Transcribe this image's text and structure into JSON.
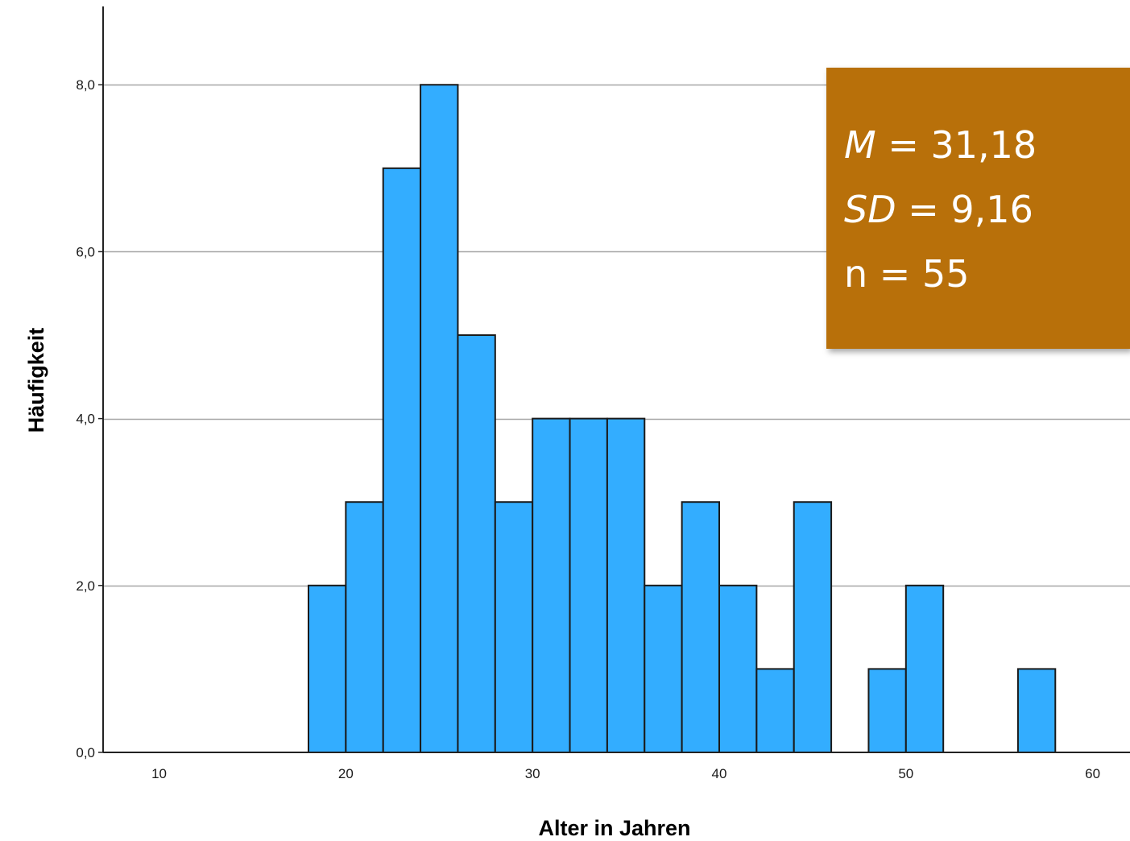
{
  "chart_data": {
    "type": "bar",
    "subtype": "histogram",
    "xlabel": "Alter in Jahren",
    "ylabel": "Häufigkeit",
    "xlim": [
      7,
      62
    ],
    "ylim": [
      0,
      8.9
    ],
    "x_ticks": [
      10,
      20,
      30,
      40,
      50,
      60
    ],
    "x_tick_labels": [
      "10",
      "20",
      "30",
      "40",
      "50",
      "60"
    ],
    "y_ticks": [
      0,
      2,
      4,
      6,
      8
    ],
    "y_tick_labels": [
      "0,0",
      "2,0",
      "4,0",
      "6,0",
      "8,0"
    ],
    "bin_width": 2,
    "bins": [
      {
        "x0": 18,
        "x1": 20,
        "count": 2
      },
      {
        "x0": 20,
        "x1": 22,
        "count": 3
      },
      {
        "x0": 22,
        "x1": 24,
        "count": 7
      },
      {
        "x0": 24,
        "x1": 26,
        "count": 8
      },
      {
        "x0": 26,
        "x1": 28,
        "count": 5
      },
      {
        "x0": 28,
        "x1": 30,
        "count": 3
      },
      {
        "x0": 30,
        "x1": 32,
        "count": 4
      },
      {
        "x0": 32,
        "x1": 34,
        "count": 4
      },
      {
        "x0": 34,
        "x1": 36,
        "count": 4
      },
      {
        "x0": 36,
        "x1": 38,
        "count": 2
      },
      {
        "x0": 38,
        "x1": 40,
        "count": 3
      },
      {
        "x0": 40,
        "x1": 42,
        "count": 2
      },
      {
        "x0": 42,
        "x1": 44,
        "count": 1
      },
      {
        "x0": 44,
        "x1": 46,
        "count": 3
      },
      {
        "x0": 48,
        "x1": 50,
        "count": 1
      },
      {
        "x0": 50,
        "x1": 52,
        "count": 2
      },
      {
        "x0": 56,
        "x1": 58,
        "count": 1
      }
    ],
    "grid": "horizontal",
    "colors": {
      "bar_fill": "#33adff",
      "bar_stroke": "#1a1a1a",
      "grid": "#a6a6a6",
      "axis": "#222222"
    }
  },
  "stats_box": {
    "lines": [
      {
        "symbol": "M",
        "value": " = 31,18"
      },
      {
        "symbol": "SD",
        "value": " = 9,16"
      },
      {
        "symbol": "n",
        "value": " = 55"
      }
    ],
    "background": "#b8700a",
    "text_color": "#ffffff"
  }
}
